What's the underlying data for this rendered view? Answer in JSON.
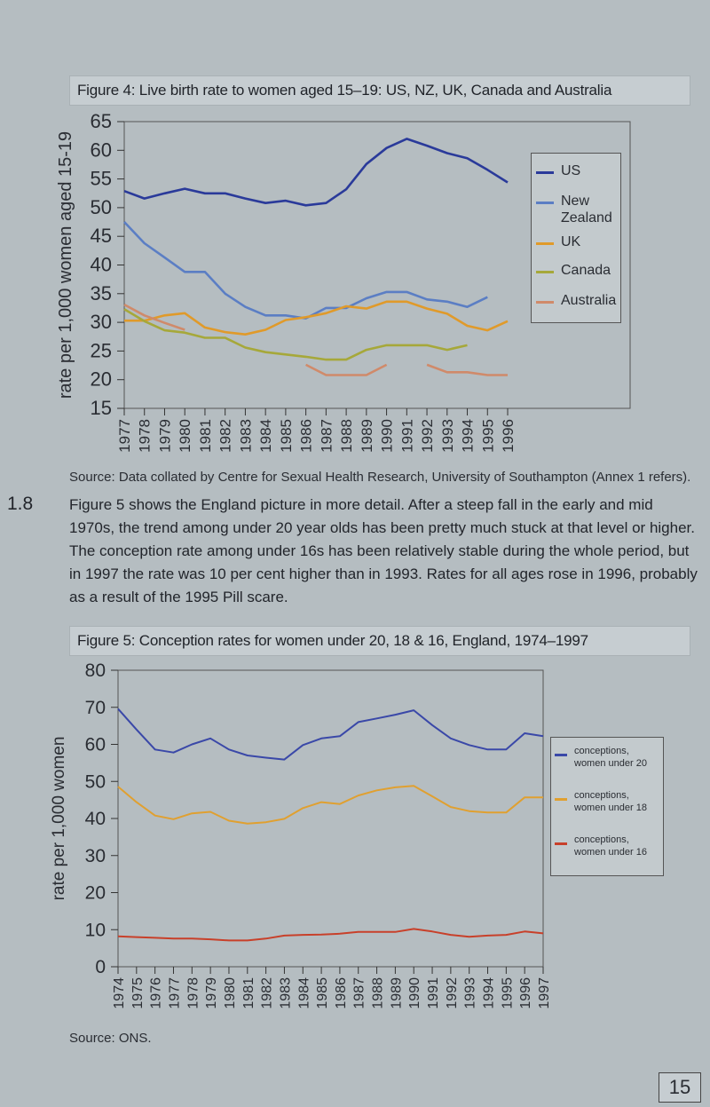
{
  "figure4": {
    "title": "Figure 4: Live birth rate to women aged 15–19: US, NZ, UK, Canada and Australia",
    "source": "Source: Data collated by Centre for Sexual Health Research, University of Southampton (Annex 1 refers)."
  },
  "paragraph": {
    "number": "1.8",
    "text": "Figure 5 shows the England picture in more detail. After a steep fall in the early and mid 1970s, the trend among under 20 year olds has been pretty much stuck at that level or higher. The conception rate among under 16s has been relatively stable during the whole period, but in 1997 the rate was 10 per cent higher than in 1993. Rates for all ages rose in 1996, probably as a result of the 1995 Pill scare."
  },
  "figure5": {
    "title": "Figure 5: Conception rates for women under 20, 18 & 16, England, 1974–1997",
    "source": "Source: ONS."
  },
  "page_number": "15",
  "chart_data": [
    {
      "type": "line",
      "ylabel": "rate per 1,000 women aged 15-19",
      "xlabel": "",
      "ylim": [
        15,
        65
      ],
      "yticks": [
        15,
        20,
        25,
        30,
        35,
        40,
        45,
        50,
        55,
        60,
        65
      ],
      "x": [
        "1977",
        "1978",
        "1979",
        "1980",
        "1981",
        "1982",
        "1983",
        "1984",
        "1985",
        "1986",
        "1987",
        "1988",
        "1989",
        "1990",
        "1991",
        "1992",
        "1993",
        "1994",
        "1995",
        "1996"
      ],
      "grid": false,
      "legend": "right",
      "series": [
        {
          "name": "US",
          "color": "#2a3a9a",
          "values": [
            52.9,
            51.6,
            52.5,
            53.3,
            52.5,
            52.5,
            51.6,
            50.8,
            51.2,
            50.4,
            50.8,
            53.2,
            57.6,
            60.4,
            62.0,
            60.8,
            59.5,
            58.6,
            56.6,
            54.4
          ]
        },
        {
          "name": "New Zealand",
          "color": "#5b7ec4",
          "values": [
            47.5,
            43.8,
            41.3,
            38.8,
            38.8,
            35.0,
            32.7,
            31.2,
            31.2,
            30.7,
            32.5,
            32.5,
            34.2,
            35.3,
            35.3,
            34.0,
            33.6,
            32.7,
            34.4,
            null
          ]
        },
        {
          "name": "UK",
          "color": "#e09a2a",
          "values": [
            30.3,
            30.3,
            31.2,
            31.6,
            29.1,
            28.3,
            27.9,
            28.7,
            30.4,
            30.9,
            31.6,
            32.8,
            32.4,
            33.6,
            33.6,
            32.4,
            31.5,
            29.4,
            28.6,
            30.2
          ]
        },
        {
          "name": "Canada",
          "color": "#a6a83a",
          "values": [
            32.3,
            30.2,
            28.6,
            28.2,
            27.3,
            27.3,
            25.6,
            24.8,
            24.4,
            24.0,
            23.5,
            23.5,
            25.2,
            26.0,
            26.0,
            26.0,
            25.2,
            26.0,
            null,
            null
          ]
        },
        {
          "name": "Australia",
          "color": "#d08a6a",
          "values": [
            33.1,
            31.2,
            29.9,
            28.7,
            null,
            null,
            null,
            null,
            null,
            22.6,
            20.8,
            20.8,
            20.8,
            22.6,
            null,
            22.6,
            21.3,
            21.3,
            20.8,
            20.8
          ]
        }
      ]
    },
    {
      "type": "line",
      "ylabel": "rate per 1,000 women",
      "xlabel": "",
      "ylim": [
        0,
        80
      ],
      "yticks": [
        0,
        10,
        20,
        30,
        40,
        50,
        60,
        70,
        80
      ],
      "x": [
        "1974",
        "1975",
        "1976",
        "1977",
        "1978",
        "1979",
        "1980",
        "1981",
        "1982",
        "1983",
        "1984",
        "1985",
        "1986",
        "1987",
        "1988",
        "1989",
        "1990",
        "1991",
        "1992",
        "1993",
        "1994",
        "1995",
        "1996",
        "1997"
      ],
      "grid": false,
      "legend": "right",
      "series": [
        {
          "name": "conceptions, women under 20",
          "color": "#3a48a8",
          "values": [
            69.6,
            64.0,
            58.6,
            57.8,
            60.0,
            61.6,
            58.6,
            57.0,
            56.4,
            55.9,
            59.8,
            61.6,
            62.2,
            66.0,
            67.0,
            68.0,
            69.2,
            65.2,
            61.6,
            59.8,
            58.6,
            58.6,
            63.0,
            62.2
          ]
        },
        {
          "name": "conceptions, women under 18",
          "color": "#e0a030",
          "values": [
            48.6,
            44.4,
            40.8,
            39.8,
            41.4,
            41.8,
            39.4,
            38.6,
            39.0,
            39.9,
            42.8,
            44.4,
            43.9,
            46.2,
            47.6,
            48.4,
            48.8,
            46.0,
            43.1,
            42.0,
            41.6,
            41.6,
            45.7,
            45.7
          ]
        },
        {
          "name": "conceptions, women under 16",
          "color": "#c8402a",
          "values": [
            8.2,
            8.0,
            7.8,
            7.6,
            7.6,
            7.4,
            7.1,
            7.1,
            7.6,
            8.4,
            8.6,
            8.7,
            8.9,
            9.4,
            9.4,
            9.4,
            10.2,
            9.5,
            8.6,
            8.1,
            8.4,
            8.6,
            9.5,
            9.0
          ]
        }
      ]
    }
  ]
}
